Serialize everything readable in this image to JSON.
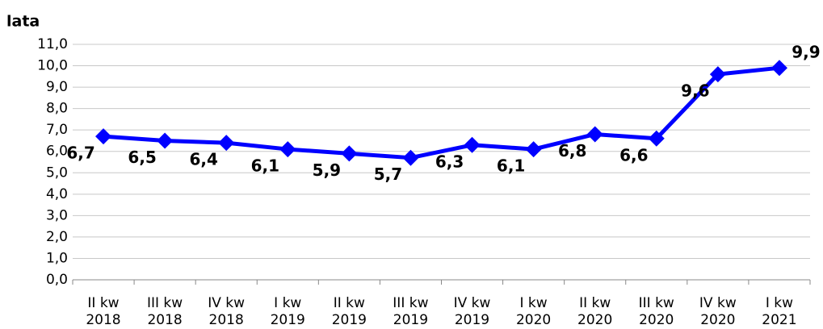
{
  "chart_data": {
    "type": "line",
    "y_label": "lata",
    "categories": [
      "II kw 2018",
      "III kw 2018",
      "IV kw 2018",
      "I kw 2019",
      "II kw 2019",
      "III kw 2019",
      "IV kw 2019",
      "I kw 2020",
      "II kw 2020",
      "III kw 2020",
      "IV kw 2020",
      "I kw 2021"
    ],
    "series": [
      {
        "name": null,
        "color": "#0000ff",
        "values": [
          6.7,
          6.5,
          6.4,
          6.1,
          5.9,
          5.7,
          6.3,
          6.1,
          6.8,
          6.6,
          9.6,
          9.9
        ],
        "value_labels": [
          "6,7",
          "6,5",
          "6,4",
          "6,1",
          "5,9",
          "5,7",
          "6,3",
          "6,1",
          "6,8",
          "6,6",
          "9,6",
          "9,9"
        ]
      }
    ],
    "ylim": [
      0,
      11
    ],
    "yticks": [
      {
        "value": 0,
        "label": "0,0"
      },
      {
        "value": 1,
        "label": "1,0"
      },
      {
        "value": 2,
        "label": "2,0"
      },
      {
        "value": 3,
        "label": "3,0"
      },
      {
        "value": 4,
        "label": "4,0"
      },
      {
        "value": 5,
        "label": "5,0"
      },
      {
        "value": 6,
        "label": "6,0"
      },
      {
        "value": 7,
        "label": "7,0"
      },
      {
        "value": 8,
        "label": "8,0"
      },
      {
        "value": 9,
        "label": "9,0"
      },
      {
        "value": 10,
        "label": "10,0"
      },
      {
        "value": 11,
        "label": "11,0"
      }
    ],
    "grid": true
  }
}
